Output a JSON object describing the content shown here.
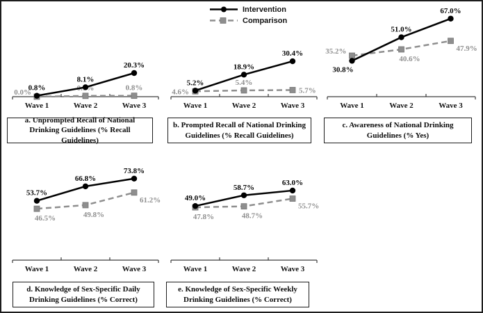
{
  "figure": {
    "legend": {
      "items": [
        {
          "label": "Intervention",
          "marker": "circle",
          "line_style": "solid",
          "color": "#000000"
        },
        {
          "label": "Comparison",
          "marker": "square",
          "line_style": "dashed",
          "color": "#8e8e8e"
        }
      ]
    },
    "colors": {
      "intervention": "#000000",
      "comparison": "#8e8e8e",
      "comparison_label": "#8f8f8f",
      "axis": "#3a3a3a",
      "caption_border": "#1b1b1b",
      "background": "#ffffff"
    }
  },
  "chart_data": [
    {
      "id": "a",
      "type": "line",
      "title": "a. Unprompted Recall of National Drinking Guidelines (% Recall Guidelines)",
      "categories": [
        "Wave 1",
        "Wave 2",
        "Wave 3"
      ],
      "ylim": [
        0,
        80
      ],
      "grid": false,
      "legend_position": "top-center-shared",
      "series": [
        {
          "name": "Intervention",
          "values": [
            0.8,
            8.1,
            20.3
          ],
          "labels": [
            "0.8%",
            "8.1%",
            "20.3%"
          ],
          "label_pos": [
            "above",
            "above",
            "above"
          ]
        },
        {
          "name": "Comparison",
          "values": [
            0.0,
            0.7,
            0.8
          ],
          "labels": [
            "0.0%",
            "0.7%",
            "0.8%"
          ],
          "label_pos": [
            "left-above",
            "above",
            "above"
          ]
        }
      ]
    },
    {
      "id": "b",
      "type": "line",
      "title": "b. Prompted Recall of National Drinking Guidelines (% Recall Guidelines)",
      "categories": [
        "Wave 1",
        "Wave 2",
        "Wave 3"
      ],
      "ylim": [
        0,
        80
      ],
      "grid": false,
      "series": [
        {
          "name": "Intervention",
          "values": [
            5.2,
            18.9,
            30.4
          ],
          "labels": [
            "5.2%",
            "18.9%",
            "30.4%"
          ],
          "label_pos": [
            "above",
            "above",
            "above"
          ]
        },
        {
          "name": "Comparison",
          "values": [
            4.6,
            5.4,
            5.7
          ],
          "labels": [
            "4.6%",
            "5.4%",
            "5.7%"
          ],
          "label_pos": [
            "left",
            "above",
            "right"
          ]
        }
      ]
    },
    {
      "id": "c",
      "type": "line",
      "title": "c. Awareness of National Drinking Guidelines (% Yes)",
      "categories": [
        "Wave 1",
        "Wave 2",
        "Wave 3"
      ],
      "ylim": [
        0,
        80
      ],
      "grid": false,
      "series": [
        {
          "name": "Intervention",
          "values": [
            30.8,
            51.0,
            67.0
          ],
          "labels": [
            "30.8%",
            "51.0%",
            "67.0%"
          ],
          "label_pos": [
            "below-left",
            "above",
            "above"
          ]
        },
        {
          "name": "Comparison",
          "values": [
            35.2,
            40.6,
            47.9
          ],
          "labels": [
            "35.2%",
            "40.6%",
            "47.9%"
          ],
          "label_pos": [
            "left-above",
            "below",
            "right-below"
          ]
        }
      ]
    },
    {
      "id": "d",
      "type": "line",
      "title": "d. Knowledge of Sex-Specific Daily Drinking Guidelines (% Correct)",
      "categories": [
        "Wave 1",
        "Wave 2",
        "Wave 3"
      ],
      "ylim": [
        0,
        85
      ],
      "grid": false,
      "series": [
        {
          "name": "Intervention",
          "values": [
            53.7,
            66.8,
            73.8
          ],
          "labels": [
            "53.7%",
            "66.8%",
            "73.8%"
          ],
          "label_pos": [
            "above",
            "above",
            "above"
          ]
        },
        {
          "name": "Comparison",
          "values": [
            46.5,
            49.8,
            61.2
          ],
          "labels": [
            "46.5%",
            "49.8%",
            "61.2%"
          ],
          "label_pos": [
            "below",
            "below",
            "right-below"
          ]
        }
      ]
    },
    {
      "id": "e",
      "type": "line",
      "title": "e. Knowledge of Sex-Specific Weekly Drinking Guidelines (% Correct)",
      "categories": [
        "Wave 1",
        "Wave 2",
        "Wave 3"
      ],
      "ylim": [
        0,
        85
      ],
      "grid": false,
      "series": [
        {
          "name": "Intervention",
          "values": [
            49.0,
            58.7,
            63.0
          ],
          "labels": [
            "49.0%",
            "58.7%",
            "63.0%"
          ],
          "label_pos": [
            "above",
            "above",
            "above"
          ]
        },
        {
          "name": "Comparison",
          "values": [
            47.8,
            48.7,
            55.7
          ],
          "labels": [
            "47.8%",
            "48.7%",
            "55.7%"
          ],
          "label_pos": [
            "below",
            "below",
            "right-below"
          ]
        }
      ]
    }
  ]
}
